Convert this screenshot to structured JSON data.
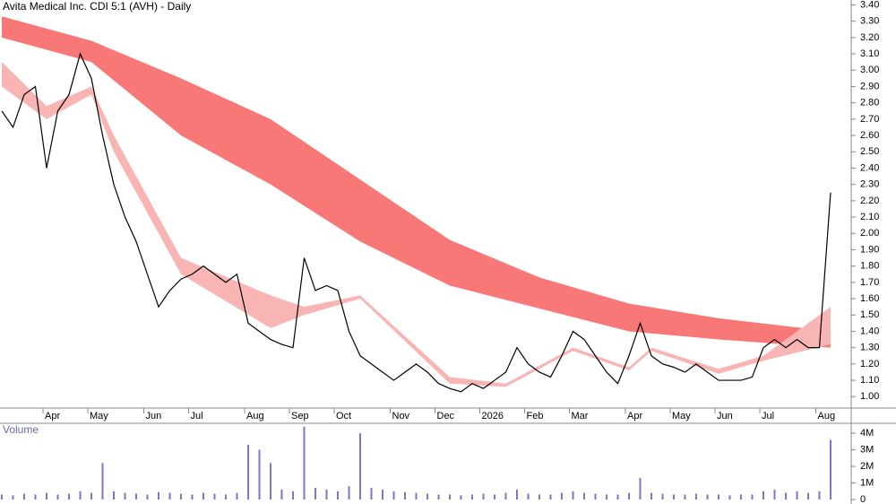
{
  "chart_data": [
    {
      "type": "line",
      "title": "Avita Medical Inc. CDI 5:1 (AVH) - Daily",
      "color": "#000000",
      "categories": [
        null,
        null,
        null,
        null,
        "Apr",
        null,
        null,
        null,
        "May",
        null,
        null,
        null,
        null,
        "Jun",
        null,
        null,
        null,
        "Jul",
        null,
        null,
        null,
        null,
        "Aug",
        null,
        null,
        null,
        "Sep",
        null,
        null,
        null,
        "Oct",
        null,
        null,
        null,
        null,
        "Nov",
        null,
        null,
        null,
        "Dec",
        null,
        null,
        null,
        "2026",
        null,
        null,
        null,
        "Feb",
        null,
        null,
        null,
        "Mar",
        null,
        null,
        null,
        null,
        "Apr",
        null,
        null,
        null,
        "May",
        null,
        null,
        null,
        "Jun",
        null,
        null,
        null,
        "Jul",
        null,
        null,
        null,
        null,
        "Aug",
        null
      ],
      "values": [
        2.75,
        2.65,
        2.85,
        2.9,
        2.4,
        2.75,
        2.85,
        3.1,
        2.95,
        2.6,
        2.3,
        2.1,
        1.95,
        1.75,
        1.55,
        1.65,
        1.72,
        1.75,
        1.8,
        1.75,
        1.7,
        1.75,
        1.45,
        1.4,
        1.35,
        1.32,
        1.3,
        1.85,
        1.65,
        1.68,
        1.65,
        1.4,
        1.25,
        1.2,
        1.15,
        1.1,
        1.15,
        1.2,
        1.15,
        1.08,
        1.05,
        1.03,
        1.08,
        1.05,
        1.1,
        1.15,
        1.3,
        1.2,
        1.15,
        1.12,
        1.25,
        1.4,
        1.35,
        1.25,
        1.15,
        1.08,
        1.25,
        1.45,
        1.25,
        1.2,
        1.18,
        1.15,
        1.2,
        1.15,
        1.1,
        1.1,
        1.1,
        1.12,
        1.3,
        1.35,
        1.3,
        1.35,
        1.3,
        1.3,
        2.25
      ],
      "bands": [
        {
          "color": "#f87878",
          "x": [
            0,
            8,
            16,
            24,
            32,
            40,
            48,
            56,
            64,
            74
          ],
          "upper": [
            3.33,
            3.18,
            2.95,
            2.7,
            2.33,
            1.96,
            1.73,
            1.57,
            1.48,
            1.4
          ],
          "lower": [
            3.2,
            3.05,
            2.6,
            2.3,
            1.95,
            1.68,
            1.54,
            1.4,
            1.35,
            1.3
          ]
        },
        {
          "color": "#f9b4b4",
          "x": [
            0,
            4,
            8,
            10,
            16,
            24,
            27,
            32,
            40,
            45,
            51,
            56,
            58,
            64,
            68,
            74
          ],
          "upper": [
            3.05,
            2.78,
            2.9,
            2.6,
            1.85,
            1.62,
            1.55,
            1.62,
            1.12,
            1.08,
            1.3,
            1.18,
            1.3,
            1.17,
            1.25,
            1.55
          ],
          "lower": [
            2.9,
            2.7,
            2.85,
            2.5,
            1.75,
            1.42,
            1.5,
            1.6,
            1.08,
            1.06,
            1.28,
            1.16,
            1.28,
            1.14,
            1.22,
            1.32
          ]
        }
      ],
      "ylim": [
        0.93,
        3.43
      ],
      "yticks": [
        {
          "value": 1.0,
          "label": "1.00"
        },
        {
          "value": 1.1,
          "label": "1.10"
        },
        {
          "value": 1.2,
          "label": "1.20"
        },
        {
          "value": 1.3,
          "label": "1.30"
        },
        {
          "value": 1.4,
          "label": "1.40"
        },
        {
          "value": 1.5,
          "label": "1.50"
        },
        {
          "value": 1.6,
          "label": "1.60"
        },
        {
          "value": 1.7,
          "label": "1.70"
        },
        {
          "value": 1.8,
          "label": "1.80"
        },
        {
          "value": 1.9,
          "label": "1.90"
        },
        {
          "value": 2.0,
          "label": "2.00"
        },
        {
          "value": 2.1,
          "label": "2.10"
        },
        {
          "value": 2.2,
          "label": "2.20"
        },
        {
          "value": 2.3,
          "label": "2.30"
        },
        {
          "value": 2.4,
          "label": "2.40"
        },
        {
          "value": 2.5,
          "label": "2.50"
        },
        {
          "value": 2.6,
          "label": "2.60"
        },
        {
          "value": 2.7,
          "label": "2.70"
        },
        {
          "value": 2.8,
          "label": "2.80"
        },
        {
          "value": 2.9,
          "label": "2.90"
        },
        {
          "value": 3.0,
          "label": "3.00"
        },
        {
          "value": 3.1,
          "label": "3.10"
        },
        {
          "value": 3.2,
          "label": "3.20"
        },
        {
          "value": 3.3,
          "label": "3.30"
        },
        {
          "value": 3.4,
          "label": "3.40"
        }
      ]
    },
    {
      "type": "bar",
      "title": "Volume",
      "color": "#7777cc",
      "values": [
        300000,
        250000,
        350000,
        300000,
        400000,
        300000,
        350000,
        500000,
        400000,
        2200000,
        500000,
        400000,
        350000,
        300000,
        450000,
        400000,
        350000,
        300000,
        400000,
        350000,
        300000,
        400000,
        3300000,
        3000000,
        2200000,
        600000,
        500000,
        4400000,
        700000,
        600000,
        500000,
        800000,
        4000000,
        700000,
        600000,
        500000,
        450000,
        400000,
        350000,
        300000,
        300000,
        250000,
        300000,
        350000,
        300000,
        400000,
        600000,
        350000,
        300000,
        300000,
        400000,
        500000,
        400000,
        350000,
        300000,
        300000,
        400000,
        1300000,
        400000,
        350000,
        300000,
        300000,
        350000,
        300000,
        300000,
        250000,
        300000,
        300000,
        500000,
        600000,
        400000,
        500000,
        400000,
        500000,
        3600000
      ],
      "ylim": [
        0,
        4600000
      ],
      "yticks": [
        0,
        {
          "value": 1000000,
          "label": "1M"
        },
        {
          "value": 2000000,
          "label": "2M"
        },
        {
          "value": 3000000,
          "label": "3M"
        },
        {
          "value": 4000000,
          "label": "4M"
        }
      ]
    }
  ]
}
